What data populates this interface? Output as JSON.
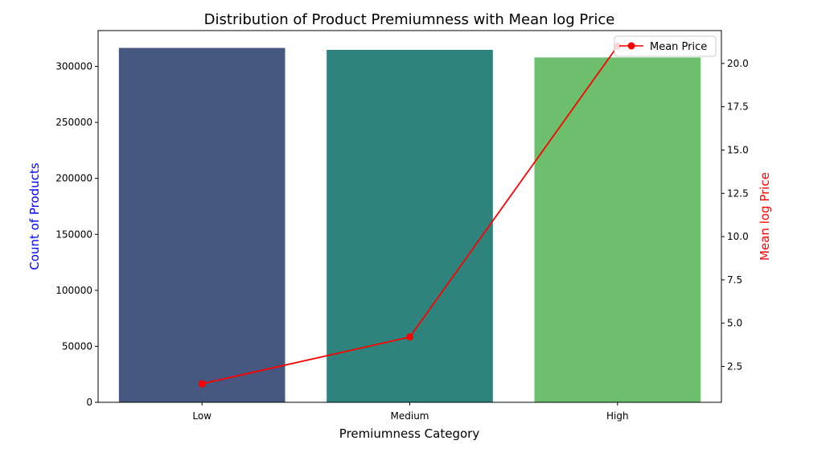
{
  "chart_data": {
    "type": "bar",
    "title": "Distribution of Product Premiumness with Mean log Price",
    "xlabel": "Premiumness Category",
    "ylabel": "Count of Products",
    "y2label": "Mean log Price",
    "categories": [
      "Low",
      "Medium",
      "High"
    ],
    "series": [
      {
        "type": "bar",
        "values": [
          316500,
          314800,
          308000
        ],
        "colors": [
          "#46587f",
          "#2e847d",
          "#6dbe6d"
        ]
      },
      {
        "type": "line",
        "name": "Mean Price",
        "axis": "right",
        "values": [
          1.5,
          4.2,
          21.0
        ],
        "color": "#ff0000"
      }
    ],
    "ylim": [
      0,
      332000
    ],
    "y2lim": [
      0.43,
      21.9
    ],
    "yticks": [
      0,
      50000,
      100000,
      150000,
      200000,
      250000,
      300000
    ],
    "ytick_labels": [
      "0",
      "50000",
      "100000",
      "150000",
      "200000",
      "250000",
      "300000"
    ],
    "y2ticks": [
      2.5,
      5.0,
      7.5,
      10.0,
      12.5,
      15.0,
      17.5,
      20.0
    ],
    "y2tick_labels": [
      "2.5",
      "5.0",
      "7.5",
      "10.0",
      "12.5",
      "15.0",
      "17.5",
      "20.0"
    ],
    "ylabel_color": "#0000ff",
    "y2label_color": "#ff0000",
    "legend_position": "top-right",
    "grid": false
  }
}
